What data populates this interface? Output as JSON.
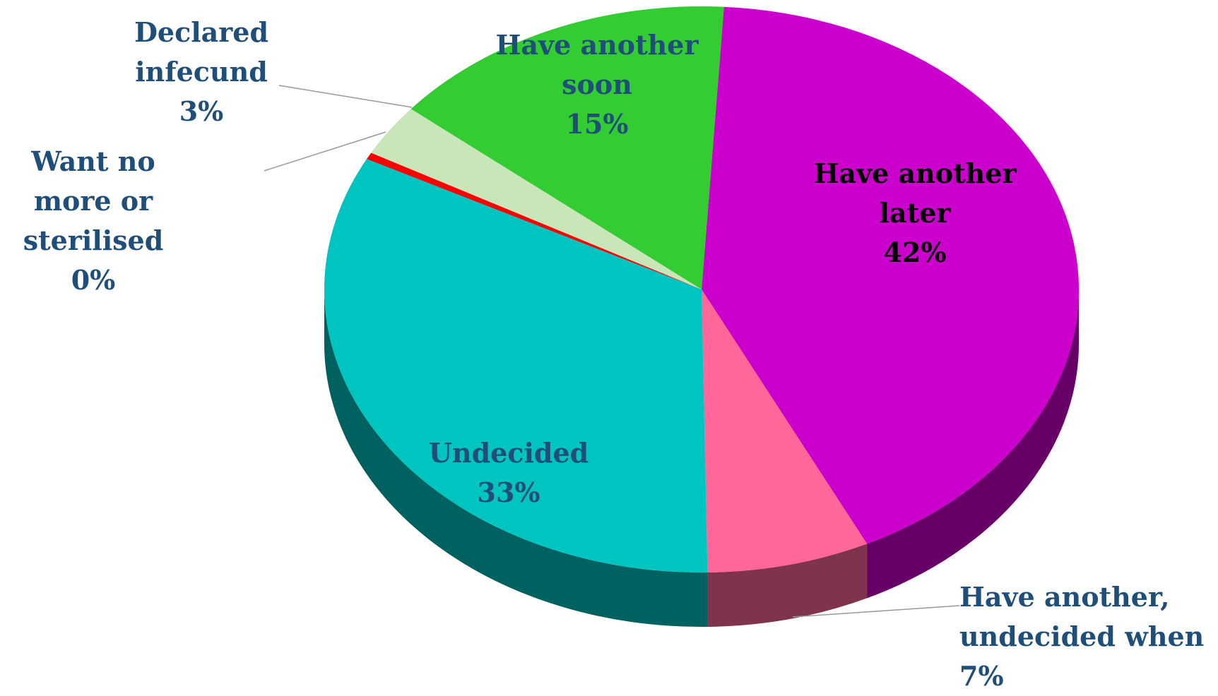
{
  "chart_data": {
    "type": "pie3d",
    "categories": [
      "Have another later",
      "Have another, undecided when",
      "Undecided",
      "Want no more or sterilised",
      "Declared infecund",
      "Have another soon"
    ],
    "values": [
      42,
      7,
      33,
      0.4,
      3,
      15
    ],
    "value_labels": [
      "42%",
      "7%",
      "33%",
      "0%",
      "3%",
      "15%"
    ],
    "colors": [
      "#cc00cc",
      "#ff6699",
      "#00c4c0",
      "#ff0000",
      "#c8e6b8",
      "#33cc33"
    ],
    "label_colors": [
      "#000000",
      "#1f4e79",
      "#1f4e79",
      "#1f4e79",
      "#1f4e79",
      "#1f4e79"
    ]
  }
}
